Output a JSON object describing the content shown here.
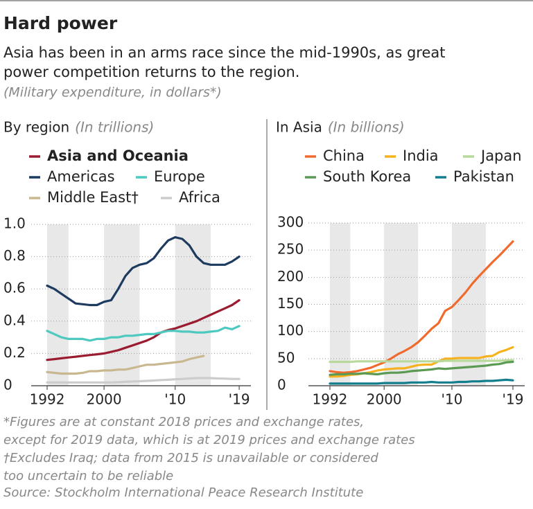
{
  "title": "Hard power",
  "subtitle": [
    "Asia has been in an arms race since the mid-1990s, as great",
    "power competition returns to the region."
  ],
  "note": "(Military expenditure, in dollars*)",
  "footnotes": [
    "*Figures are at constant 2018 prices and exchange rates,",
    "except for 2019 data, which is at 2019 prices and exchange rates",
    "†Excludes Iraq; data from 2015 is unavailable or considered",
    "too uncertain to be reliable"
  ],
  "source": "Source: Stockholm International Peace Research Institute",
  "chart_data": [
    {
      "type": "line",
      "title": "By region",
      "unit": "(In trillions)",
      "x": [
        1992,
        1993,
        1994,
        1995,
        1996,
        1997,
        1998,
        1999,
        2000,
        2001,
        2002,
        2003,
        2004,
        2005,
        2006,
        2007,
        2008,
        2009,
        2010,
        2011,
        2012,
        2013,
        2014,
        2015,
        2016,
        2017,
        2018,
        2019
      ],
      "xlim": [
        1990,
        2021
      ],
      "xticks": [
        1992,
        2000,
        {
          "value": 2010,
          "label": "'10"
        },
        {
          "value": 2019,
          "label": "'19"
        }
      ],
      "ylim": [
        0,
        1
      ],
      "yticks": [
        0,
        0.2,
        0.4,
        0.6,
        0.8,
        {
          "value": 1,
          "label": "1.0"
        }
      ],
      "grid": true,
      "bands": [
        [
          1992,
          1995
        ],
        [
          2000,
          2005
        ],
        [
          2010,
          2015
        ]
      ],
      "series": [
        {
          "name": "Asia and Oceania",
          "color": "#9b1b30",
          "values": [
            0.16,
            0.165,
            0.17,
            0.175,
            0.18,
            0.185,
            0.19,
            0.195,
            0.2,
            0.21,
            0.22,
            0.235,
            0.25,
            0.265,
            0.28,
            0.3,
            0.33,
            0.345,
            0.355,
            0.37,
            0.385,
            0.4,
            0.42,
            0.44,
            0.46,
            0.48,
            0.5,
            0.53
          ]
        },
        {
          "name": "Americas",
          "color": "#1d3a5f",
          "values": [
            0.62,
            0.6,
            0.57,
            0.54,
            0.51,
            0.505,
            0.5,
            0.5,
            0.52,
            0.53,
            0.6,
            0.68,
            0.73,
            0.75,
            0.76,
            0.79,
            0.85,
            0.9,
            0.92,
            0.91,
            0.87,
            0.8,
            0.76,
            0.75,
            0.75,
            0.75,
            0.77,
            0.8
          ]
        },
        {
          "name": "Europe",
          "color": "#4ec9c0",
          "values": [
            0.34,
            0.32,
            0.3,
            0.29,
            0.29,
            0.29,
            0.28,
            0.29,
            0.29,
            0.3,
            0.3,
            0.31,
            0.31,
            0.315,
            0.32,
            0.32,
            0.33,
            0.34,
            0.34,
            0.335,
            0.335,
            0.33,
            0.33,
            0.335,
            0.34,
            0.36,
            0.35,
            0.37
          ]
        },
        {
          "name": "Middle East†",
          "color": "#c9b88f",
          "values": [
            0.085,
            0.08,
            0.075,
            0.075,
            0.075,
            0.08,
            0.09,
            0.09,
            0.095,
            0.095,
            0.1,
            0.1,
            0.11,
            0.12,
            0.13,
            0.13,
            0.135,
            0.14,
            0.145,
            0.15,
            0.165,
            0.175,
            0.185,
            null,
            null,
            null,
            null,
            null
          ]
        },
        {
          "name": "Africa",
          "color": "#cccccc",
          "values": [
            0.02,
            0.02,
            0.02,
            0.02,
            0.02,
            0.02,
            0.02,
            0.02,
            0.02,
            0.02,
            0.022,
            0.024,
            0.026,
            0.028,
            0.03,
            0.032,
            0.035,
            0.037,
            0.04,
            0.042,
            0.045,
            0.047,
            0.048,
            0.047,
            0.045,
            0.044,
            0.042,
            0.042
          ]
        }
      ]
    },
    {
      "type": "line",
      "title": "In Asia",
      "unit": "(In billions)",
      "x": [
        1992,
        1993,
        1994,
        1995,
        1996,
        1997,
        1998,
        1999,
        2000,
        2001,
        2002,
        2003,
        2004,
        2005,
        2006,
        2007,
        2008,
        2009,
        2010,
        2011,
        2012,
        2013,
        2014,
        2015,
        2016,
        2017,
        2018,
        2019
      ],
      "xlim": [
        1990,
        2021
      ],
      "xticks": [
        1992,
        2000,
        {
          "value": 2010,
          "label": "'10"
        },
        {
          "value": 2019,
          "label": "'19"
        }
      ],
      "ylim": [
        0,
        300
      ],
      "yticks": [
        0,
        50,
        100,
        150,
        200,
        250,
        300
      ],
      "grid": true,
      "bands": [
        [
          1992,
          1995
        ],
        [
          2000,
          2005
        ],
        [
          2010,
          2015
        ]
      ],
      "series": [
        {
          "name": "China",
          "color": "#f06a2e",
          "values": [
            27,
            25,
            24,
            25,
            27,
            30,
            33,
            38,
            43,
            50,
            58,
            64,
            71,
            80,
            92,
            105,
            115,
            138,
            145,
            158,
            172,
            188,
            202,
            215,
            228,
            240,
            253,
            266
          ]
        },
        {
          "name": "India",
          "color": "#f5b21e",
          "values": [
            17,
            17,
            18,
            20,
            21,
            23,
            25,
            28,
            30,
            31,
            32,
            32,
            35,
            38,
            39,
            39,
            45,
            50,
            50,
            51,
            51,
            51,
            51,
            54,
            55,
            62,
            66,
            71
          ]
        },
        {
          "name": "Japan",
          "color": "#b7d99a",
          "values": [
            44,
            44,
            44,
            44,
            45,
            45,
            45,
            45,
            45,
            45,
            45,
            45,
            45,
            45,
            45,
            45,
            45,
            46,
            46,
            46,
            46,
            46,
            46,
            46,
            46,
            46,
            47,
            47
          ]
        },
        {
          "name": "South Korea",
          "color": "#5a9a52",
          "values": [
            20,
            21,
            21,
            22,
            22,
            23,
            22,
            21,
            23,
            24,
            24,
            25,
            27,
            28,
            29,
            30,
            32,
            31,
            32,
            33,
            34,
            35,
            36,
            37,
            39,
            40,
            43,
            44
          ]
        },
        {
          "name": "Pakistan",
          "color": "#127e8d",
          "values": [
            4,
            4,
            4,
            4,
            4,
            4,
            4,
            4,
            5,
            5,
            5,
            5,
            6,
            6,
            6,
            7,
            6,
            6,
            6,
            7,
            7,
            8,
            8,
            9,
            9,
            10,
            11,
            10
          ]
        }
      ]
    }
  ]
}
